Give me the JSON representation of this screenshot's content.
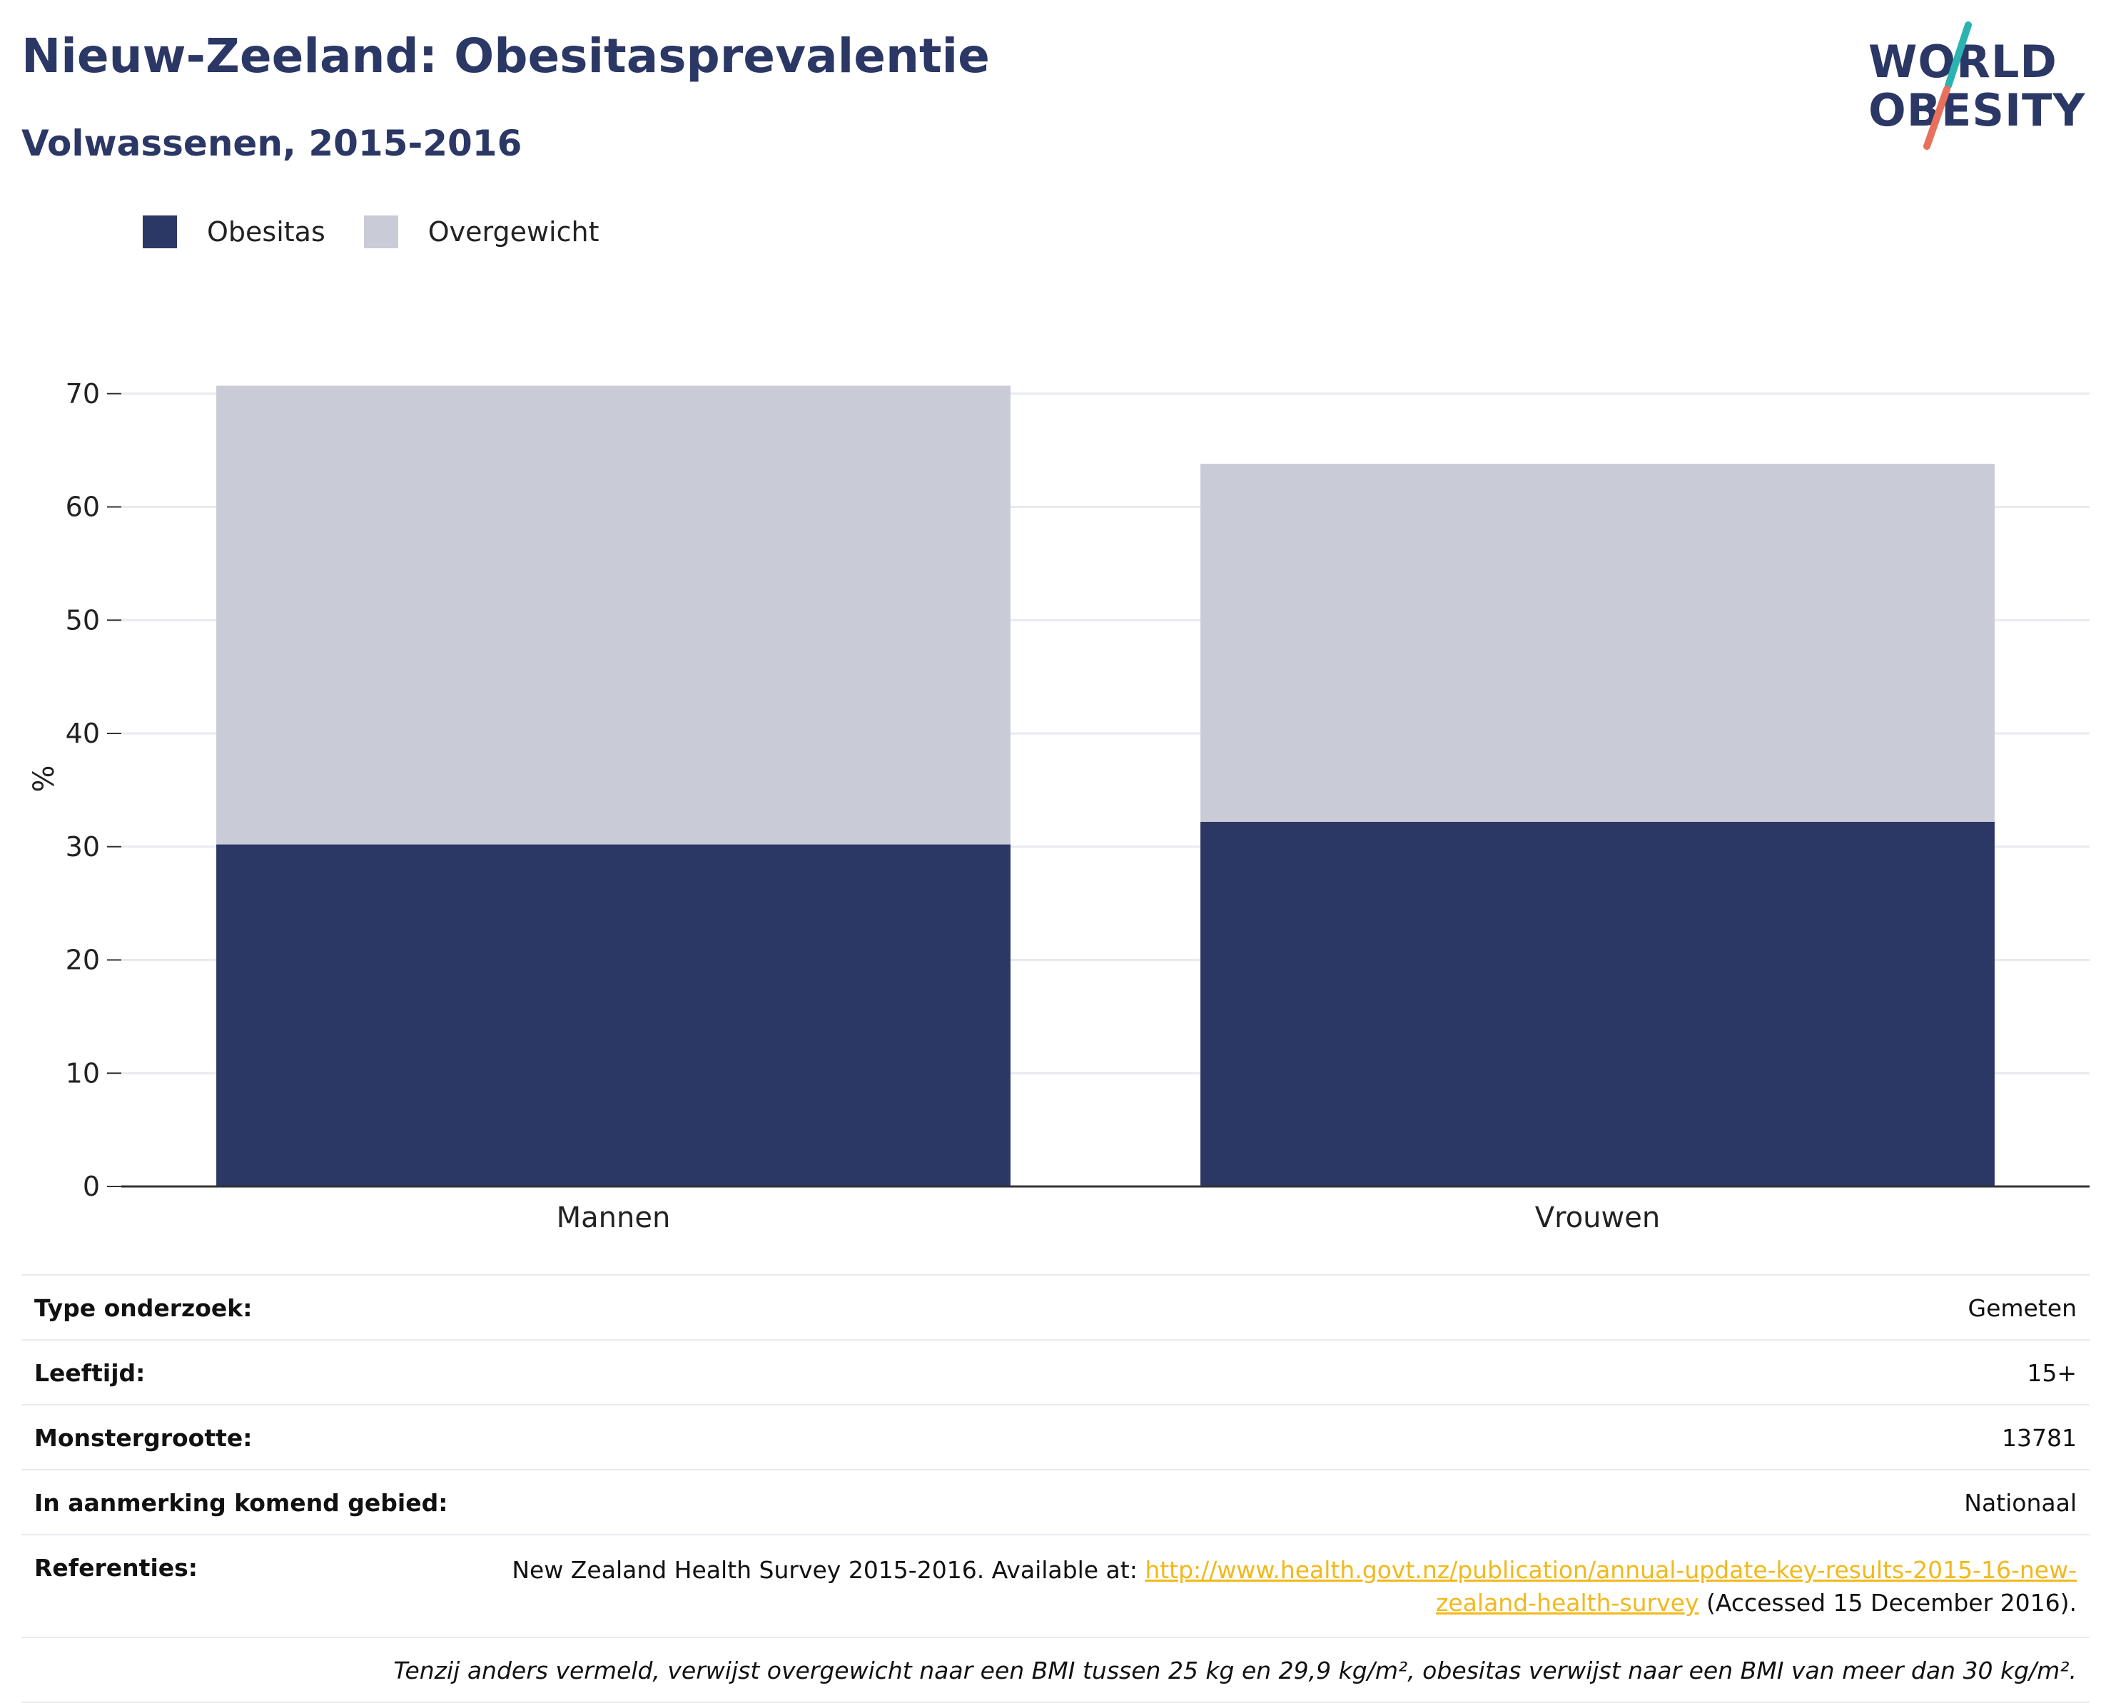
{
  "header": {
    "title": "Nieuw-Zeeland: Obesitasprevalentie",
    "subtitle": "Volwassenen, 2015-2016"
  },
  "logo": {
    "line1": "WORLD",
    "line2": "OBESITY",
    "colors": {
      "text": "#2b3765",
      "teal": "#2bb3b1",
      "coral": "#e8705c"
    }
  },
  "legend": {
    "items": [
      {
        "label": "Obesitas",
        "color": "#2b3765"
      },
      {
        "label": "Overgewicht",
        "color": "#c9ccd7"
      }
    ]
  },
  "chart_data": {
    "type": "bar",
    "stacked": true,
    "categories": [
      "Mannen",
      "Vrouwen"
    ],
    "series": [
      {
        "name": "Obesitas",
        "color": "#2b3765",
        "values": [
          30.2,
          32.2
        ]
      },
      {
        "name": "Overgewicht",
        "color": "#c9ccd7",
        "values": [
          40.5,
          31.6
        ]
      }
    ],
    "ylabel": "%",
    "ylim": [
      0,
      72
    ],
    "yticks": [
      0,
      10,
      20,
      30,
      40,
      50,
      60,
      70
    ],
    "grid": true,
    "legend_position": "top-left"
  },
  "info": {
    "rows": [
      {
        "label": "Type onderzoek:",
        "value": "Gemeten"
      },
      {
        "label": "Leeftijd:",
        "value": "15+"
      },
      {
        "label": "Monstergrootte:",
        "value": "13781"
      },
      {
        "label": "In aanmerking komend gebied:",
        "value": "Nationaal"
      }
    ],
    "references": {
      "label": "Referenties:",
      "before": "New Zealand Health Survey 2015-2016. Available at: ",
      "link": "http://www.health.govt.nz/publication/annual-update-key-results-2015-16-new-zealand-health-survey",
      "after": " (Accessed 15 December 2016)."
    },
    "note": "Tenzij anders vermeld, verwijst overgewicht naar een BMI tussen 25 kg en 29,9 kg/m², obesitas verwijst naar een BMI van meer dan 30 kg/m²."
  }
}
